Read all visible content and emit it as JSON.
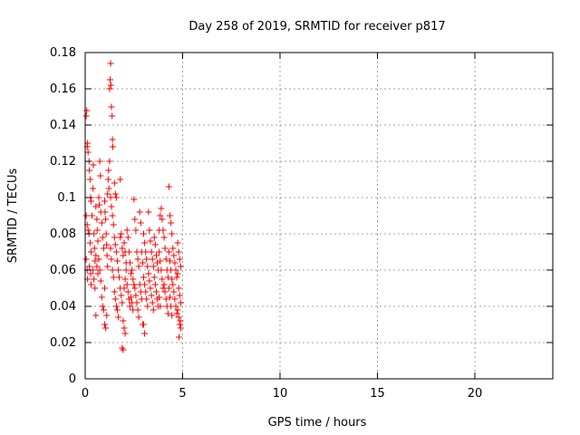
{
  "chart_data": {
    "type": "scatter",
    "title": "Day 258 of 2019, SRMTID for receiver p817",
    "xlabel": "GPS time / hours",
    "ylabel": "SRMTID / TECUs",
    "xlim": [
      0,
      24
    ],
    "ylim": [
      0,
      0.18
    ],
    "x_ticks": [
      0,
      5,
      10,
      15,
      20
    ],
    "x_tick_labels": [
      "0",
      "5",
      "10",
      "15",
      "20"
    ],
    "y_ticks": [
      0,
      0.02,
      0.04,
      0.06,
      0.08,
      0.1,
      0.12,
      0.14,
      0.16,
      0.18
    ],
    "y_tick_labels": [
      "0",
      "0.02",
      "0.04",
      "0.06",
      "0.08",
      "0.1",
      "0.12",
      "0.14",
      "0.16",
      "0.18"
    ],
    "grid": true,
    "marker": "plus",
    "colors": {
      "series": "#ff0000",
      "grid": "#a0a0a0",
      "axis": "#000000"
    },
    "series": [
      {
        "name": "SRMTID",
        "points": [
          [
            0.05,
            0.145
          ],
          [
            0.08,
            0.148
          ],
          [
            0.1,
            0.128
          ],
          [
            0.12,
            0.13
          ],
          [
            0.15,
            0.125
          ],
          [
            0.05,
            0.09
          ],
          [
            0.1,
            0.085
          ],
          [
            0.15,
            0.082
          ],
          [
            0.05,
            0.066
          ],
          [
            0.1,
            0.06
          ],
          [
            0.12,
            0.055
          ],
          [
            0.2,
            0.12
          ],
          [
            0.22,
            0.115
          ],
          [
            0.25,
            0.11
          ],
          [
            0.28,
            0.1
          ],
          [
            0.3,
            0.098
          ],
          [
            0.2,
            0.08
          ],
          [
            0.25,
            0.075
          ],
          [
            0.3,
            0.07
          ],
          [
            0.22,
            0.062
          ],
          [
            0.28,
            0.058
          ],
          [
            0.3,
            0.052
          ],
          [
            0.35,
            0.09
          ],
          [
            0.4,
            0.105
          ],
          [
            0.42,
            0.118
          ],
          [
            0.45,
            0.08
          ],
          [
            0.48,
            0.072
          ],
          [
            0.5,
            0.065
          ],
          [
            0.4,
            0.06
          ],
          [
            0.45,
            0.055
          ],
          [
            0.5,
            0.05
          ],
          [
            0.55,
            0.095
          ],
          [
            0.6,
            0.088
          ],
          [
            0.62,
            0.082
          ],
          [
            0.65,
            0.076
          ],
          [
            0.55,
            0.068
          ],
          [
            0.6,
            0.062
          ],
          [
            0.65,
            0.058
          ],
          [
            0.7,
            0.1
          ],
          [
            0.72,
            0.096
          ],
          [
            0.75,
            0.12
          ],
          [
            0.78,
            0.112
          ],
          [
            0.8,
            0.092
          ],
          [
            0.85,
            0.086
          ],
          [
            0.7,
            0.066
          ],
          [
            0.75,
            0.06
          ],
          [
            0.8,
            0.054
          ],
          [
            0.85,
            0.045
          ],
          [
            0.9,
            0.078
          ],
          [
            0.95,
            0.072
          ],
          [
            0.55,
            0.035
          ],
          [
            0.9,
            0.04
          ],
          [
            0.95,
            0.038
          ],
          [
            1.0,
            0.05
          ],
          [
            1.0,
            0.098
          ],
          [
            1.02,
            0.092
          ],
          [
            1.05,
            0.088
          ],
          [
            1.08,
            0.08
          ],
          [
            1.1,
            0.074
          ],
          [
            1.12,
            0.068
          ],
          [
            1.15,
            0.062
          ],
          [
            1.0,
            0.03
          ],
          [
            1.05,
            0.028
          ],
          [
            1.1,
            0.035
          ],
          [
            1.15,
            0.102
          ],
          [
            1.18,
            0.11
          ],
          [
            1.2,
            0.115
          ],
          [
            1.22,
            0.105
          ],
          [
            1.25,
            0.12
          ],
          [
            1.25,
            0.16
          ],
          [
            1.28,
            0.165
          ],
          [
            1.3,
            0.174
          ],
          [
            1.32,
            0.162
          ],
          [
            1.35,
            0.15
          ],
          [
            1.38,
            0.145
          ],
          [
            1.4,
            0.132
          ],
          [
            1.42,
            0.128
          ],
          [
            1.3,
            0.1
          ],
          [
            1.35,
            0.095
          ],
          [
            1.4,
            0.09
          ],
          [
            1.45,
            0.085
          ],
          [
            1.3,
            0.072
          ],
          [
            1.35,
            0.066
          ],
          [
            1.4,
            0.06
          ],
          [
            1.45,
            0.056
          ],
          [
            1.5,
            0.108
          ],
          [
            1.55,
            0.102
          ],
          [
            1.6,
            0.1
          ],
          [
            1.5,
            0.078
          ],
          [
            1.55,
            0.074
          ],
          [
            1.6,
            0.07
          ],
          [
            1.5,
            0.048
          ],
          [
            1.55,
            0.044
          ],
          [
            1.6,
            0.04
          ],
          [
            1.65,
            0.065
          ],
          [
            1.7,
            0.06
          ],
          [
            1.75,
            0.056
          ],
          [
            1.65,
            0.038
          ],
          [
            1.7,
            0.034
          ],
          [
            1.8,
            0.11
          ],
          [
            1.8,
            0.078
          ],
          [
            1.85,
            0.08
          ],
          [
            1.9,
            0.072
          ],
          [
            1.95,
            0.068
          ],
          [
            1.8,
            0.05
          ],
          [
            1.85,
            0.046
          ],
          [
            1.9,
            0.042
          ],
          [
            1.95,
            0.032
          ],
          [
            1.9,
            0.017
          ],
          [
            1.95,
            0.016
          ],
          [
            2.0,
            0.075
          ],
          [
            2.05,
            0.07
          ],
          [
            2.1,
            0.064
          ],
          [
            2.0,
            0.05
          ],
          [
            2.05,
            0.055
          ],
          [
            2.1,
            0.06
          ],
          [
            2.0,
            0.028
          ],
          [
            2.05,
            0.025
          ],
          [
            2.15,
            0.082
          ],
          [
            2.2,
            0.078
          ],
          [
            2.25,
            0.07
          ],
          [
            2.3,
            0.064
          ],
          [
            2.15,
            0.052
          ],
          [
            2.2,
            0.048
          ],
          [
            2.25,
            0.044
          ],
          [
            2.3,
            0.04
          ],
          [
            2.35,
            0.058
          ],
          [
            2.4,
            0.06
          ],
          [
            2.45,
            0.055
          ],
          [
            2.5,
            0.052
          ],
          [
            2.35,
            0.045
          ],
          [
            2.4,
            0.042
          ],
          [
            2.45,
            0.038
          ],
          [
            2.5,
            0.099
          ],
          [
            2.55,
            0.088
          ],
          [
            2.6,
            0.082
          ],
          [
            2.65,
            0.07
          ],
          [
            2.7,
            0.066
          ],
          [
            2.75,
            0.062
          ],
          [
            2.55,
            0.05
          ],
          [
            2.6,
            0.046
          ],
          [
            2.65,
            0.042
          ],
          [
            2.7,
            0.038
          ],
          [
            2.75,
            0.034
          ],
          [
            2.8,
            0.092
          ],
          [
            2.85,
            0.086
          ],
          [
            2.9,
            0.07
          ],
          [
            2.95,
            0.064
          ],
          [
            2.8,
            0.052
          ],
          [
            2.85,
            0.048
          ],
          [
            2.9,
            0.044
          ],
          [
            2.95,
            0.03
          ],
          [
            3.0,
            0.03
          ],
          [
            3.05,
            0.025
          ],
          [
            3.0,
            0.08
          ],
          [
            3.05,
            0.075
          ],
          [
            3.1,
            0.07
          ],
          [
            3.15,
            0.066
          ],
          [
            3.2,
            0.062
          ],
          [
            3.0,
            0.056
          ],
          [
            3.05,
            0.052
          ],
          [
            3.1,
            0.048
          ],
          [
            3.15,
            0.044
          ],
          [
            3.2,
            0.04
          ],
          [
            3.25,
            0.092
          ],
          [
            3.3,
            0.082
          ],
          [
            3.35,
            0.076
          ],
          [
            3.4,
            0.07
          ],
          [
            3.45,
            0.066
          ],
          [
            3.5,
            0.062
          ],
          [
            3.25,
            0.058
          ],
          [
            3.3,
            0.054
          ],
          [
            3.35,
            0.05
          ],
          [
            3.4,
            0.046
          ],
          [
            3.45,
            0.042
          ],
          [
            3.5,
            0.038
          ],
          [
            3.55,
            0.078
          ],
          [
            3.6,
            0.074
          ],
          [
            3.65,
            0.068
          ],
          [
            3.7,
            0.064
          ],
          [
            3.75,
            0.06
          ],
          [
            3.55,
            0.056
          ],
          [
            3.6,
            0.052
          ],
          [
            3.65,
            0.048
          ],
          [
            3.7,
            0.044
          ],
          [
            3.75,
            0.04
          ],
          [
            3.8,
            0.082
          ],
          [
            3.85,
            0.09
          ],
          [
            3.9,
            0.094
          ],
          [
            3.95,
            0.088
          ],
          [
            4.0,
            0.082
          ],
          [
            3.8,
            0.07
          ],
          [
            3.85,
            0.065
          ],
          [
            3.9,
            0.06
          ],
          [
            3.95,
            0.055
          ],
          [
            4.0,
            0.05
          ],
          [
            3.8,
            0.045
          ],
          [
            3.85,
            0.04
          ],
          [
            4.05,
            0.078
          ],
          [
            4.1,
            0.072
          ],
          [
            4.15,
            0.066
          ],
          [
            4.2,
            0.06
          ],
          [
            4.25,
            0.056
          ],
          [
            4.05,
            0.052
          ],
          [
            4.1,
            0.048
          ],
          [
            4.15,
            0.044
          ],
          [
            4.2,
            0.04
          ],
          [
            4.25,
            0.036
          ],
          [
            4.3,
            0.106
          ],
          [
            4.35,
            0.09
          ],
          [
            4.4,
            0.086
          ],
          [
            4.45,
            0.08
          ],
          [
            4.3,
            0.07
          ],
          [
            4.35,
            0.065
          ],
          [
            4.4,
            0.06
          ],
          [
            4.45,
            0.055
          ],
          [
            4.3,
            0.05
          ],
          [
            4.35,
            0.045
          ],
          [
            4.4,
            0.04
          ],
          [
            4.45,
            0.035
          ],
          [
            4.5,
            0.072
          ],
          [
            4.55,
            0.068
          ],
          [
            4.6,
            0.064
          ],
          [
            4.65,
            0.06
          ],
          [
            4.7,
            0.056
          ],
          [
            4.5,
            0.052
          ],
          [
            4.55,
            0.048
          ],
          [
            4.6,
            0.044
          ],
          [
            4.65,
            0.04
          ],
          [
            4.7,
            0.036
          ],
          [
            4.75,
            0.075
          ],
          [
            4.8,
            0.07
          ],
          [
            4.85,
            0.066
          ],
          [
            4.9,
            0.062
          ],
          [
            4.75,
            0.058
          ],
          [
            4.8,
            0.05
          ],
          [
            4.85,
            0.046
          ],
          [
            4.9,
            0.042
          ],
          [
            4.75,
            0.038
          ],
          [
            4.8,
            0.034
          ],
          [
            4.85,
            0.03
          ],
          [
            4.9,
            0.028
          ],
          [
            4.82,
            0.023
          ],
          [
            4.88,
            0.032
          ]
        ]
      }
    ]
  }
}
